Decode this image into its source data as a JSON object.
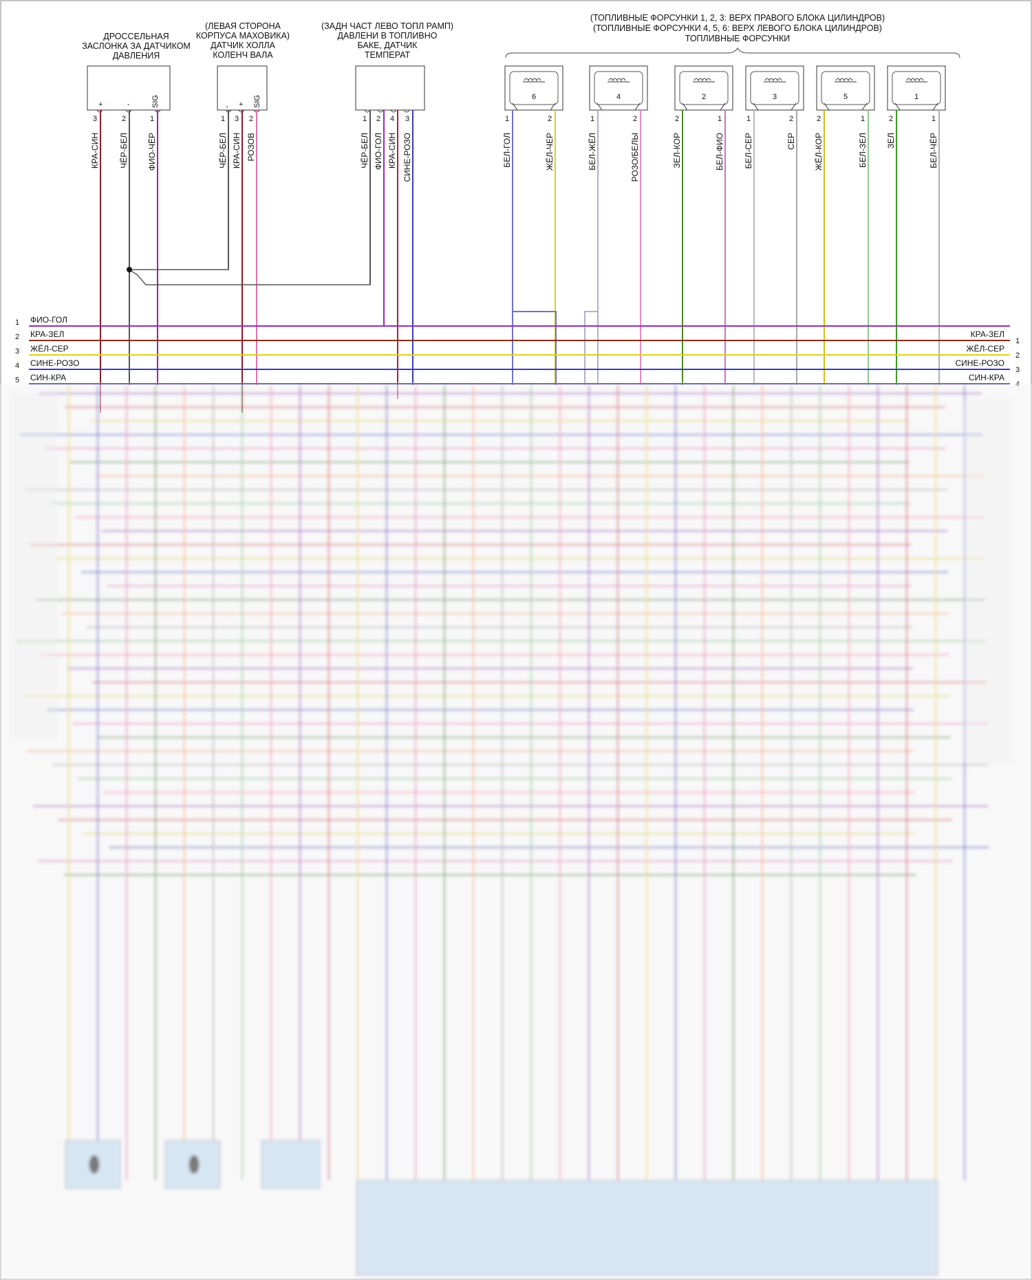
{
  "headers": {
    "throttle": [
      "ДРОССЕЛЬНАЯ",
      "ЗАСЛОНКА ЗА ДАТЧИКОМ",
      "ДАВЛЕНИЯ"
    ],
    "hall": [
      "(ЛЕВАЯ СТОРОНА",
      "КОРПУСА МАХОВИКА)",
      "ДАТЧИК ХОЛЛА",
      "КОЛЕНЧ ВАЛА"
    ],
    "fuel_temp": [
      "(ЗАДН ЧАСТ ЛЕВО ТОПЛ РАМП)",
      "ДАВЛЕНИ В ТОПЛИВНО",
      "БАКЕ, ДАТЧИК",
      "ТЕМПЕРАТ"
    ],
    "injectors": [
      "(ТОПЛИВНЫЕ ФОРСУНКИ 1, 2, 3: ВЕРХ ПРАВОГО БЛОКА ЦИЛИНДРОВ)",
      "(ТОПЛИВНЫЕ ФОРСУНКИ 4, 5, 6: ВЕРХ ЛЕВОГО БЛОКА ЦИЛИНДРОВ)",
      "ТОПЛИВНЫЕ ФОРСУНКИ"
    ]
  },
  "connectors": {
    "throttle_pins": [
      "+",
      "-",
      "SIG"
    ],
    "hall_pins": [
      "-",
      "+",
      "SIG"
    ],
    "injector_numbers": [
      "6",
      "4",
      "2",
      "3",
      "5",
      "1"
    ]
  },
  "wires": {
    "throttle": [
      {
        "pin": "3",
        "label": "КРА-СИН",
        "color": "#8b1a2a"
      },
      {
        "pin": "2",
        "label": "ЧЁР-БЕЛ",
        "color": "#555555"
      },
      {
        "pin": "1",
        "label": "ФИО-ЧЁР",
        "color": "#a020a0"
      }
    ],
    "hall": [
      {
        "pin": "1",
        "label": "ЧЁР-БЕЛ",
        "color": "#555555"
      },
      {
        "pin": "3",
        "label": "КРА-СИН",
        "color": "#8b1a2a"
      },
      {
        "pin": "2",
        "label": "РОЗОВ",
        "color": "#e070b0"
      }
    ],
    "fuel_temp": [
      {
        "pin": "1",
        "label": "ЧЁР-БЕЛ",
        "color": "#555555"
      },
      {
        "pin": "2",
        "label": "ФИО-ГОЛ",
        "color": "#9a2ab8"
      },
      {
        "pin": "4",
        "label": "КРА-СИН",
        "color": "#a8203a"
      },
      {
        "pin": "3",
        "label": "СИНЕ-РОЗО",
        "color": "#3a3ac0"
      }
    ],
    "injectors": [
      {
        "pin": "1",
        "label": "БЕЛ-ГОЛ",
        "color": "#7070c8"
      },
      {
        "pin": "2",
        "label": "ЖЁЛ-ЧЕР",
        "color": "#d8d020"
      },
      {
        "pin": "1",
        "label": "БЕЛ-ЖЁЛ",
        "color": "#b0b0c8"
      },
      {
        "pin": "2",
        "label": "РОЗО/БЕЛЫ",
        "color": "#e888c0"
      },
      {
        "pin": "2",
        "label": "ЗЕЛ-КОР",
        "color": "#4a8a20"
      },
      {
        "pin": "1",
        "label": "БЕЛ-ФИО",
        "color": "#d070d0"
      },
      {
        "pin": "1",
        "label": "БЕЛ-СЕР",
        "color": "#b8b8c0"
      },
      {
        "pin": "2",
        "label": "СЕР",
        "color": "#a8a8a8"
      },
      {
        "pin": "2",
        "label": "ЖЁЛ-КОР",
        "color": "#d0c010"
      },
      {
        "pin": "1",
        "label": "БЕЛ-ЗЕЛ",
        "color": "#90c890"
      },
      {
        "pin": "2",
        "label": "ЗЕЛ",
        "color": "#3a9a20"
      },
      {
        "pin": "1",
        "label": "БЕЛ-ЧЁР",
        "color": "#b0b0b0"
      }
    ]
  },
  "left_bus": [
    {
      "num": "1",
      "label": "ФИО-ГОЛ",
      "color": "#9a2ab8"
    },
    {
      "num": "2",
      "label": "КРА-ЗЕЛ",
      "color": "#8b2a1a"
    },
    {
      "num": "3",
      "label": "ЖЁЛ-СЕР",
      "color": "#e0d020"
    },
    {
      "num": "4",
      "label": "СИНЕ-РОЗО",
      "color": "#3a3ac0"
    },
    {
      "num": "5",
      "label": "СИН-КРА",
      "color": "#3030a0"
    }
  ],
  "right_bus": [
    {
      "num": "1",
      "label": "КРА-ЗЕЛ"
    },
    {
      "num": "2",
      "label": "ЖЁЛ-СЕР"
    },
    {
      "num": "3",
      "label": "СИНЕ-РОЗО"
    },
    {
      "num": "4",
      "label": "СИН-КРА"
    }
  ]
}
